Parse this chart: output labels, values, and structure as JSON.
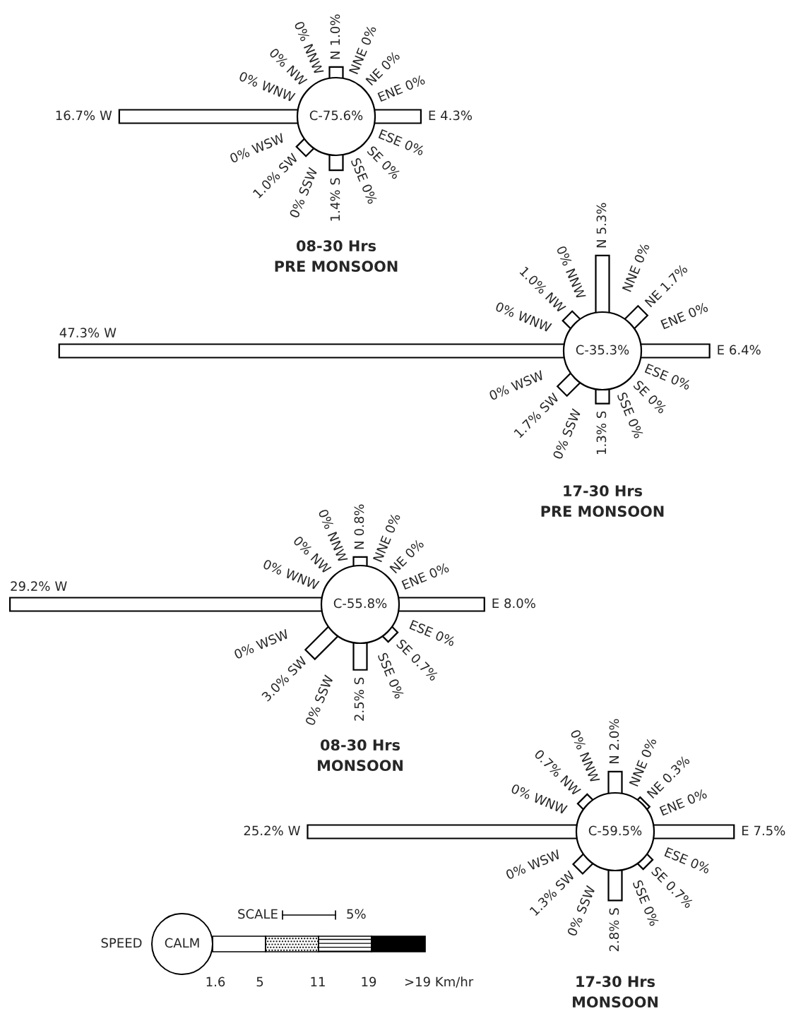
{
  "chart_data": [
    {
      "type": "other",
      "title": "08-30 Hrs",
      "subtitle": "PRE MONSOON",
      "categories": [
        "N",
        "NNE",
        "NE",
        "ENE",
        "E",
        "ESE",
        "SE",
        "SSE",
        "S",
        "SSW",
        "SW",
        "WSW",
        "W",
        "WNW",
        "NW",
        "NNW"
      ],
      "values": [
        1.0,
        0,
        0,
        0,
        4.3,
        0,
        0,
        0,
        1.4,
        0,
        1.0,
        0,
        16.7,
        0,
        0,
        0
      ],
      "value_labels": [
        "1.0%",
        "0%",
        "0%",
        "0%",
        "4.3%",
        "0%",
        "0%",
        "0%",
        "1.4%",
        "0%",
        "1.0%",
        "0%",
        "16.7%",
        "0%",
        "0%",
        "0%"
      ],
      "annotations": [
        "C-75.6%"
      ]
    },
    {
      "type": "other",
      "title": "17-30 Hrs",
      "subtitle": "PRE MONSOON",
      "categories": [
        "N",
        "NNE",
        "NE",
        "ENE",
        "E",
        "ESE",
        "SE",
        "SSE",
        "S",
        "SSW",
        "SW",
        "WSW",
        "W",
        "WNW",
        "NW",
        "NNW"
      ],
      "values": [
        5.3,
        0,
        1.7,
        0,
        6.4,
        0,
        0,
        0,
        1.3,
        0,
        1.7,
        0,
        47.3,
        0,
        1.0,
        0
      ],
      "value_labels": [
        "5.3%",
        "0%",
        "1.7%",
        "0%",
        "6.4%",
        "0%",
        "0%",
        "0%",
        "1.3%",
        "0%",
        "1.7%",
        "0%",
        "47.3%",
        "0%",
        "1.0%",
        "0%"
      ],
      "annotations": [
        "C-35.3%"
      ]
    },
    {
      "type": "other",
      "title": "08-30 Hrs",
      "subtitle": "MONSOON",
      "categories": [
        "N",
        "NNE",
        "NE",
        "ENE",
        "E",
        "ESE",
        "SE",
        "SSE",
        "S",
        "SSW",
        "SW",
        "WSW",
        "W",
        "WNW",
        "NW",
        "NNW"
      ],
      "values": [
        0.8,
        0,
        0,
        0,
        8.0,
        0,
        0.7,
        0,
        2.5,
        0,
        3.0,
        0,
        29.2,
        0,
        0,
        0
      ],
      "value_labels": [
        "0.8%",
        "0%",
        "0%",
        "0%",
        "8.0%",
        "0%",
        "0.7%",
        "0%",
        "2.5%",
        "0%",
        "3.0%",
        "0%",
        "29.2%",
        "0%",
        "0%",
        "0%"
      ],
      "annotations": [
        "C-55.8%"
      ]
    },
    {
      "type": "other",
      "title": "17-30 Hrs",
      "subtitle": "MONSOON",
      "categories": [
        "N",
        "NNE",
        "NE",
        "ENE",
        "E",
        "ESE",
        "SE",
        "SSE",
        "S",
        "SSW",
        "SW",
        "WSW",
        "W",
        "WNW",
        "NW",
        "NNW"
      ],
      "values": [
        2.0,
        0,
        0.3,
        0,
        7.5,
        0,
        0.7,
        0,
        2.8,
        0,
        1.3,
        0,
        25.2,
        0,
        0.7,
        0
      ],
      "value_labels": [
        "2.0%",
        "0%",
        "0.3%",
        "0%",
        "7.5%",
        "0%",
        "0.7%",
        "0%",
        "2.8%",
        "0%",
        "1.3%",
        "0%",
        "25.2%",
        "0%",
        "0.7%",
        "0%"
      ],
      "annotations": [
        "C-59.5%"
      ]
    },
    {
      "type": "other",
      "annotations": [
        "SCALE",
        "5%",
        "SPEED",
        "CALM",
        "1.6",
        "5",
        "11",
        "19",
        ">19 Km/hr"
      ]
    }
  ]
}
